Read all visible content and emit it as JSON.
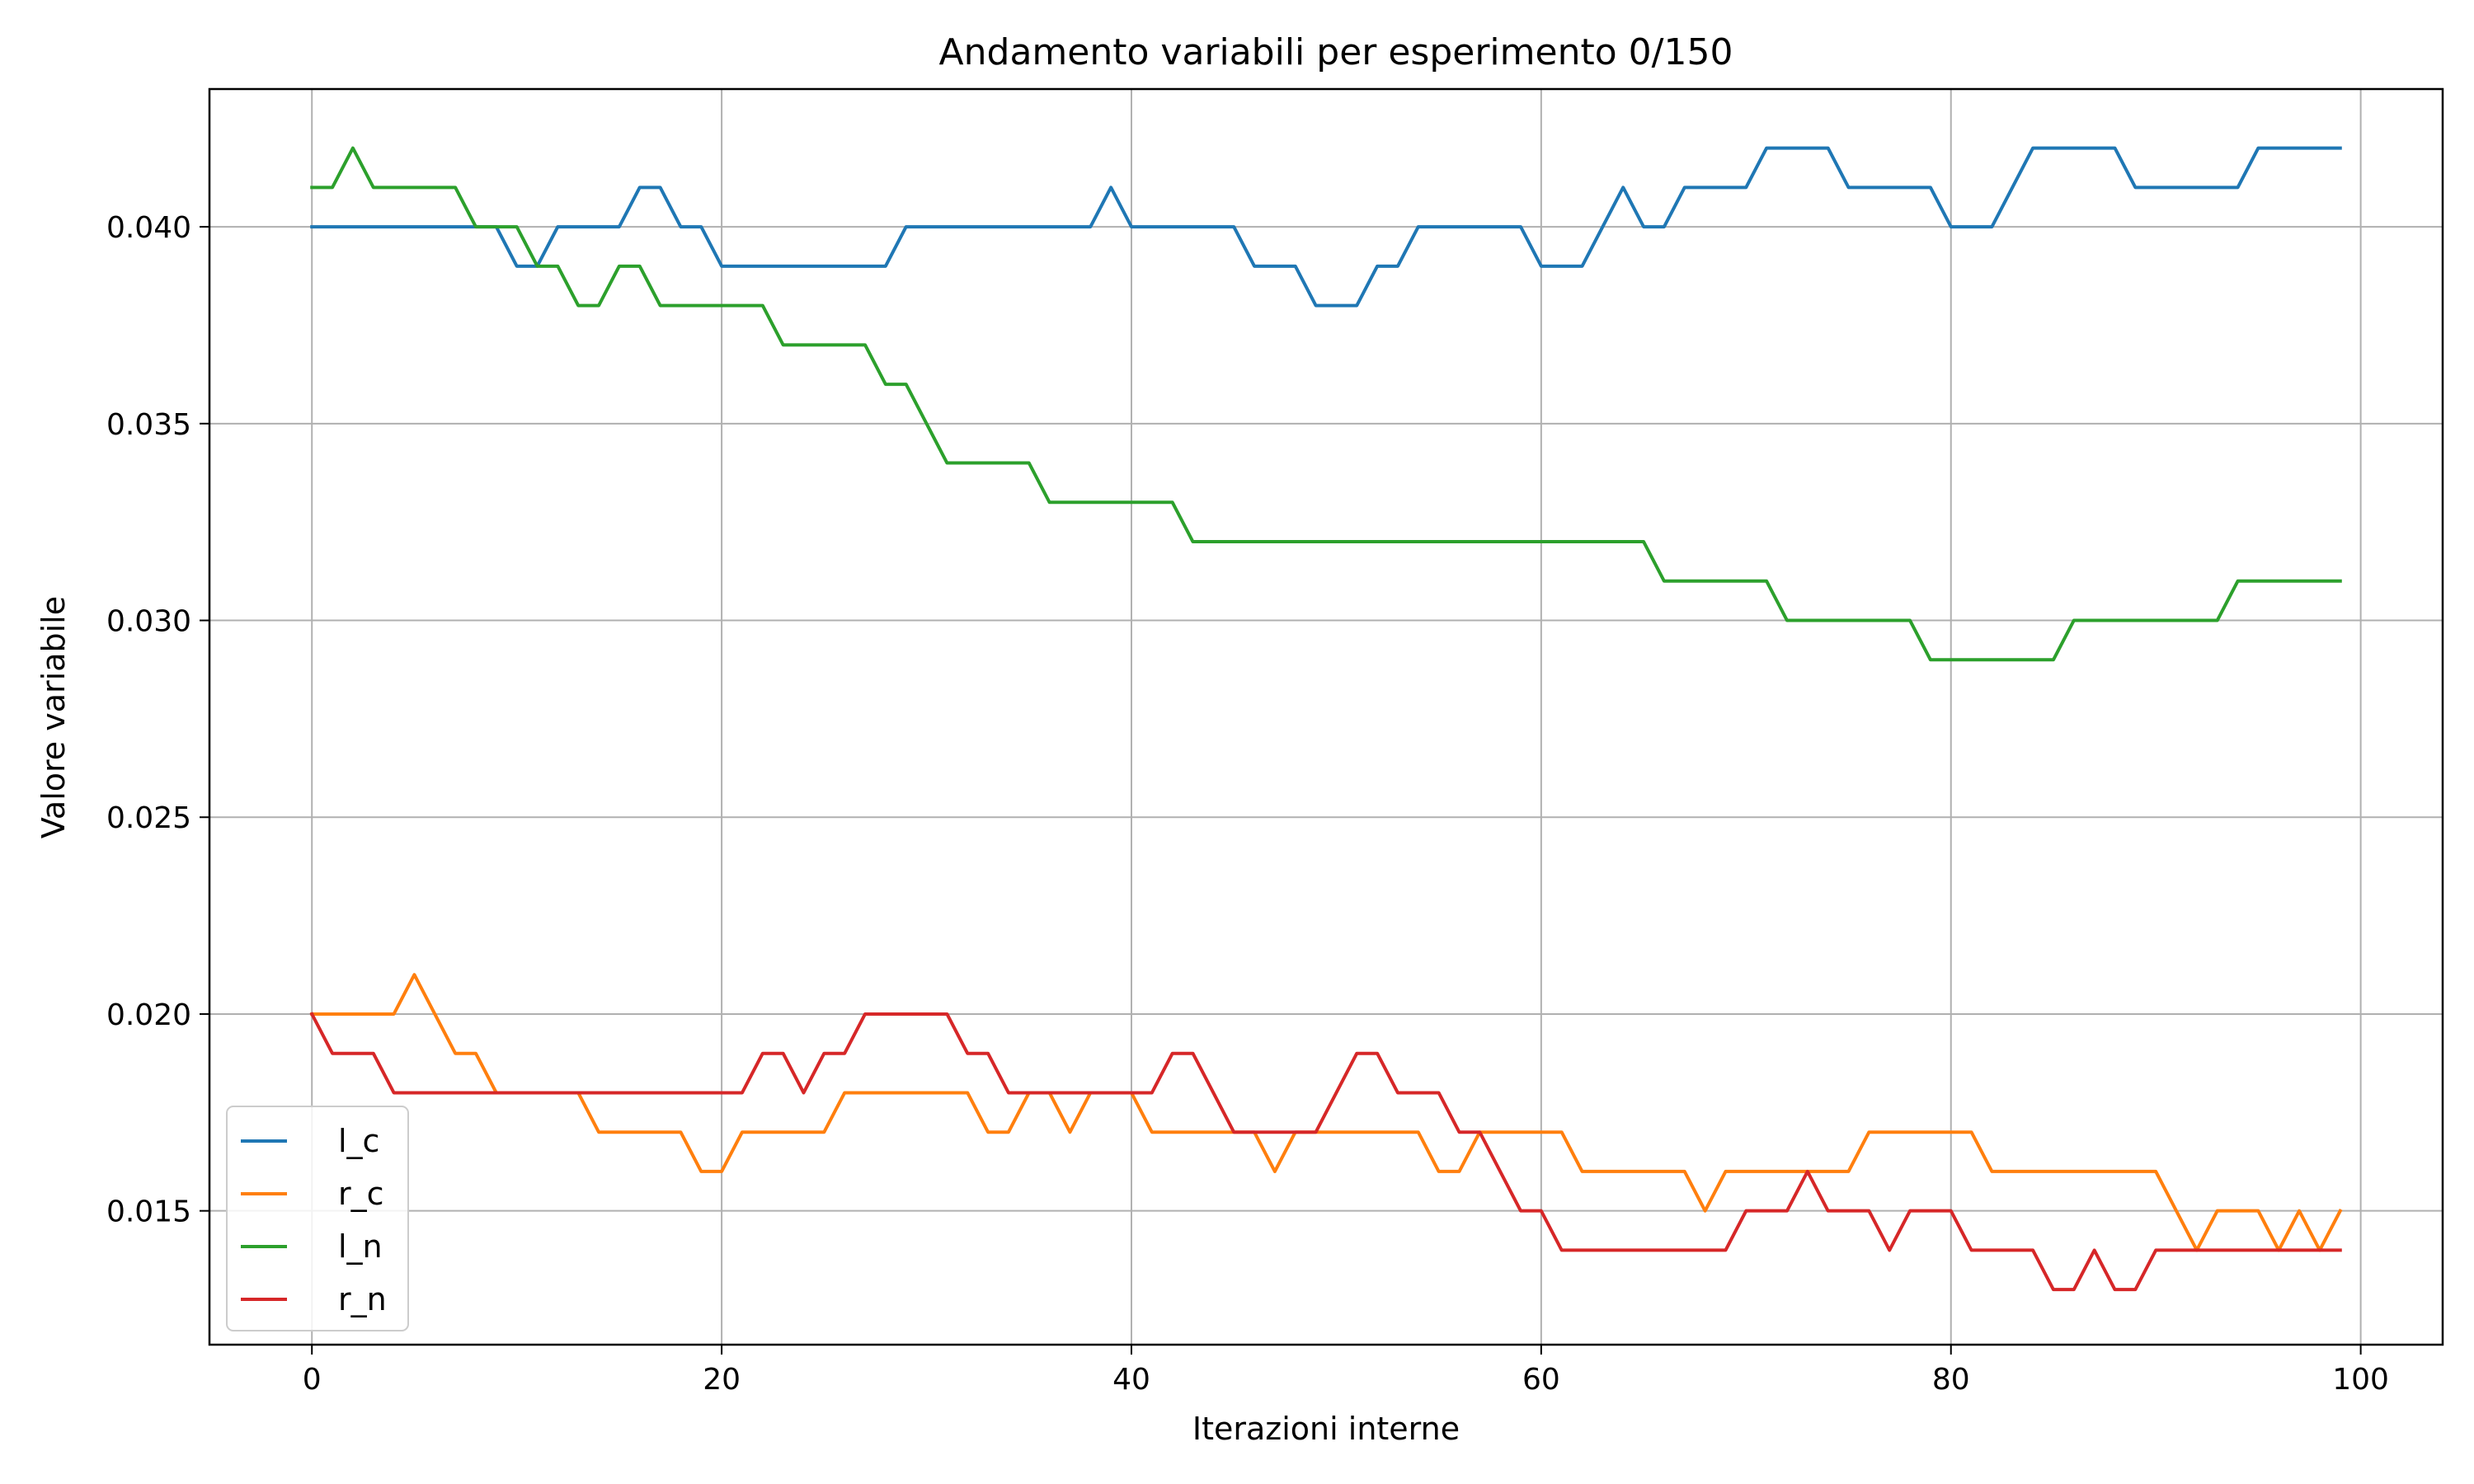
{
  "chart_data": {
    "type": "line",
    "title": "Andamento variabili per esperimento 0/150",
    "xlabel": "Iterazioni interne",
    "ylabel": "Valore variabile",
    "xlim": [
      -5,
      104
    ],
    "ylim": [
      0.0116,
      0.0435
    ],
    "xticks": [
      0,
      20,
      40,
      60,
      80,
      100
    ],
    "yticks": [
      0.015,
      0.02,
      0.025,
      0.03,
      0.035,
      0.04
    ],
    "xtick_labels": [
      "0",
      "20",
      "40",
      "60",
      "80",
      "100"
    ],
    "ytick_labels": [
      "0.015",
      "0.020",
      "0.025",
      "0.030",
      "0.035",
      "0.040"
    ],
    "grid": true,
    "legend_position": "lower-left",
    "x_start": 0,
    "x_step": 1,
    "series": [
      {
        "name": "l_c",
        "color": "#1f77b4",
        "values": [
          0.04,
          0.04,
          0.04,
          0.04,
          0.04,
          0.04,
          0.04,
          0.04,
          0.04,
          0.04,
          0.039,
          0.039,
          0.04,
          0.04,
          0.04,
          0.04,
          0.041,
          0.041,
          0.04,
          0.04,
          0.039,
          0.039,
          0.039,
          0.039,
          0.039,
          0.039,
          0.039,
          0.039,
          0.039,
          0.04,
          0.04,
          0.04,
          0.04,
          0.04,
          0.04,
          0.04,
          0.04,
          0.04,
          0.04,
          0.041,
          0.04,
          0.04,
          0.04,
          0.04,
          0.04,
          0.04,
          0.039,
          0.039,
          0.039,
          0.038,
          0.038,
          0.038,
          0.039,
          0.039,
          0.04,
          0.04,
          0.04,
          0.04,
          0.04,
          0.04,
          0.039,
          0.039,
          0.039,
          0.04,
          0.041,
          0.04,
          0.04,
          0.041,
          0.041,
          0.041,
          0.041,
          0.042,
          0.042,
          0.042,
          0.042,
          0.041,
          0.041,
          0.041,
          0.041,
          0.041,
          0.04,
          0.04,
          0.04,
          0.041,
          0.042,
          0.042,
          0.042,
          0.042,
          0.042,
          0.041,
          0.041,
          0.041,
          0.041,
          0.041,
          0.041,
          0.042,
          0.042,
          0.042,
          0.042,
          0.042
        ]
      },
      {
        "name": "r_c",
        "color": "#ff7f0e",
        "values": [
          0.02,
          0.02,
          0.02,
          0.02,
          0.02,
          0.021,
          0.02,
          0.019,
          0.019,
          0.018,
          0.018,
          0.018,
          0.018,
          0.018,
          0.017,
          0.017,
          0.017,
          0.017,
          0.017,
          0.016,
          0.016,
          0.017,
          0.017,
          0.017,
          0.017,
          0.017,
          0.018,
          0.018,
          0.018,
          0.018,
          0.018,
          0.018,
          0.018,
          0.017,
          0.017,
          0.018,
          0.018,
          0.017,
          0.018,
          0.018,
          0.018,
          0.017,
          0.017,
          0.017,
          0.017,
          0.017,
          0.017,
          0.016,
          0.017,
          0.017,
          0.017,
          0.017,
          0.017,
          0.017,
          0.017,
          0.016,
          0.016,
          0.017,
          0.017,
          0.017,
          0.017,
          0.017,
          0.016,
          0.016,
          0.016,
          0.016,
          0.016,
          0.016,
          0.015,
          0.016,
          0.016,
          0.016,
          0.016,
          0.016,
          0.016,
          0.016,
          0.017,
          0.017,
          0.017,
          0.017,
          0.017,
          0.017,
          0.016,
          0.016,
          0.016,
          0.016,
          0.016,
          0.016,
          0.016,
          0.016,
          0.016,
          0.015,
          0.014,
          0.015,
          0.015,
          0.015,
          0.014,
          0.015,
          0.014,
          0.015
        ]
      },
      {
        "name": "l_n",
        "color": "#2ca02c",
        "values": [
          0.041,
          0.041,
          0.042,
          0.041,
          0.041,
          0.041,
          0.041,
          0.041,
          0.04,
          0.04,
          0.04,
          0.039,
          0.039,
          0.038,
          0.038,
          0.039,
          0.039,
          0.038,
          0.038,
          0.038,
          0.038,
          0.038,
          0.038,
          0.037,
          0.037,
          0.037,
          0.037,
          0.037,
          0.036,
          0.036,
          0.035,
          0.034,
          0.034,
          0.034,
          0.034,
          0.034,
          0.033,
          0.033,
          0.033,
          0.033,
          0.033,
          0.033,
          0.033,
          0.032,
          0.032,
          0.032,
          0.032,
          0.032,
          0.032,
          0.032,
          0.032,
          0.032,
          0.032,
          0.032,
          0.032,
          0.032,
          0.032,
          0.032,
          0.032,
          0.032,
          0.032,
          0.032,
          0.032,
          0.032,
          0.032,
          0.032,
          0.031,
          0.031,
          0.031,
          0.031,
          0.031,
          0.031,
          0.03,
          0.03,
          0.03,
          0.03,
          0.03,
          0.03,
          0.03,
          0.029,
          0.029,
          0.029,
          0.029,
          0.029,
          0.029,
          0.029,
          0.03,
          0.03,
          0.03,
          0.03,
          0.03,
          0.03,
          0.03,
          0.03,
          0.031,
          0.031,
          0.031,
          0.031,
          0.031,
          0.031
        ]
      },
      {
        "name": "r_n",
        "color": "#d62728",
        "values": [
          0.02,
          0.019,
          0.019,
          0.019,
          0.018,
          0.018,
          0.018,
          0.018,
          0.018,
          0.018,
          0.018,
          0.018,
          0.018,
          0.018,
          0.018,
          0.018,
          0.018,
          0.018,
          0.018,
          0.018,
          0.018,
          0.018,
          0.019,
          0.019,
          0.018,
          0.019,
          0.019,
          0.02,
          0.02,
          0.02,
          0.02,
          0.02,
          0.019,
          0.019,
          0.018,
          0.018,
          0.018,
          0.018,
          0.018,
          0.018,
          0.018,
          0.018,
          0.019,
          0.019,
          0.018,
          0.017,
          0.017,
          0.017,
          0.017,
          0.017,
          0.018,
          0.019,
          0.019,
          0.018,
          0.018,
          0.018,
          0.017,
          0.017,
          0.016,
          0.015,
          0.015,
          0.014,
          0.014,
          0.014,
          0.014,
          0.014,
          0.014,
          0.014,
          0.014,
          0.014,
          0.015,
          0.015,
          0.015,
          0.016,
          0.015,
          0.015,
          0.015,
          0.014,
          0.015,
          0.015,
          0.015,
          0.014,
          0.014,
          0.014,
          0.014,
          0.013,
          0.013,
          0.014,
          0.013,
          0.013,
          0.014,
          0.014,
          0.014,
          0.014,
          0.014,
          0.014,
          0.014,
          0.014,
          0.014,
          0.014
        ]
      }
    ]
  }
}
